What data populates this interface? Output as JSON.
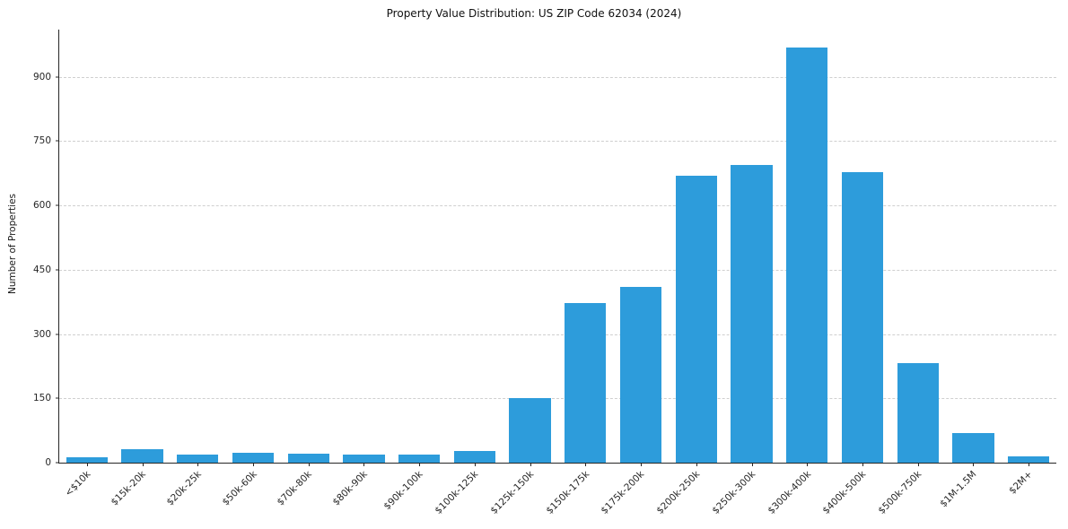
{
  "chart_data": {
    "type": "bar",
    "title": "Property Value Distribution: US ZIP Code 62034 (2024)",
    "xlabel": "",
    "ylabel": "Number of Properties",
    "categories": [
      "<$10k",
      "$15k-20k",
      "$20k-25k",
      "$50k-60k",
      "$70k-80k",
      "$80k-90k",
      "$90k-100k",
      "$100k-125k",
      "$125k-150k",
      "$150k-175k",
      "$175k-200k",
      "$200k-250k",
      "$250k-300k",
      "$300k-400k",
      "$400k-500k",
      "$500k-750k",
      "$1M-1.5M",
      "$2M+"
    ],
    "values": [
      12,
      32,
      18,
      22,
      20,
      18,
      18,
      28,
      150,
      372,
      410,
      670,
      695,
      968,
      678,
      232,
      70,
      15
    ],
    "yticks": [
      0,
      150,
      300,
      450,
      600,
      750,
      900
    ],
    "ylim": [
      0,
      1010
    ],
    "grid": "horizontal-dashed",
    "legend": "none",
    "bar_color": "#2D9CDB",
    "bar_width_fraction": 0.75
  }
}
